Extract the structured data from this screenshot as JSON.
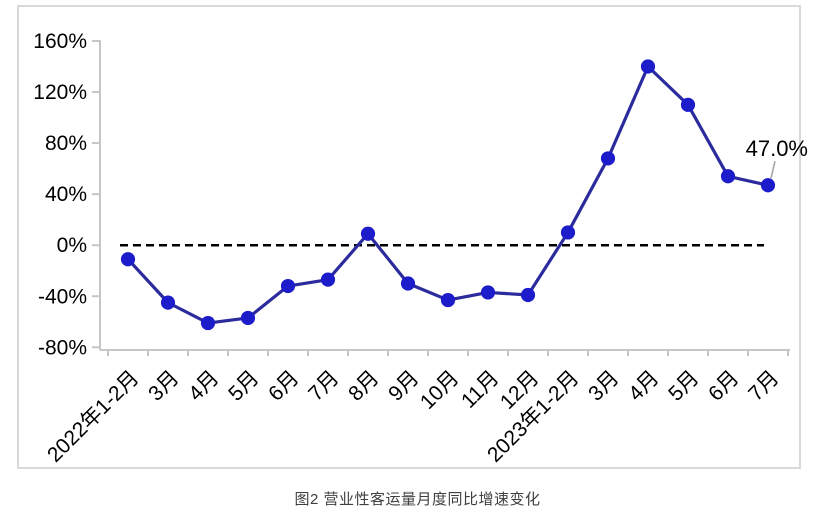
{
  "caption": "图2 营业性客运量月度同比增速变化",
  "chart_data": {
    "type": "line",
    "categories": [
      "2022年1-2月",
      "3月",
      "4月",
      "5月",
      "6月",
      "7月",
      "8月",
      "9月",
      "10月",
      "11月",
      "12月",
      "2023年1-2月",
      "3月",
      "4月",
      "5月",
      "6月",
      "7月"
    ],
    "values": [
      -11,
      -45,
      -61,
      -57,
      -32,
      -27,
      9,
      -30,
      -43,
      -37,
      -39,
      10,
      68,
      140,
      110,
      54,
      47
    ],
    "unit": "%",
    "ylim": [
      -80,
      160
    ],
    "yticks": [
      160,
      120,
      80,
      40,
      0,
      -40,
      -80
    ],
    "zero_line_dashed": true,
    "grid": false,
    "legend": "none",
    "annotation": {
      "text": "47.0%",
      "index": 16
    },
    "colors": {
      "line": "#2b2b9e",
      "marker": "#1c1ccb",
      "zero_line": "#000000",
      "axis": "#c6c6c6",
      "frame": "#d9d9d9",
      "tick_label": "#000000",
      "annotation_leader": "#a6a6a6"
    }
  }
}
